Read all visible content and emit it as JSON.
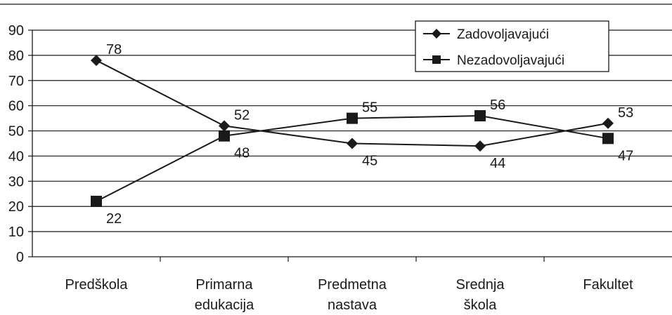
{
  "chart_data": {
    "type": "line",
    "categories": [
      [
        "Predškola"
      ],
      [
        "Primarna",
        "edukacija"
      ],
      [
        "Predmetna",
        "nastava"
      ],
      [
        "Srednja",
        "škola"
      ],
      [
        "Fakultet"
      ]
    ],
    "series": [
      {
        "name": "Zadovoljavajući",
        "marker": "diamond",
        "values": [
          78,
          52,
          45,
          44,
          53
        ]
      },
      {
        "name": "Nezadovoljavajući",
        "marker": "square",
        "values": [
          22,
          48,
          55,
          56,
          47
        ]
      }
    ],
    "data_labels": [
      [
        "78",
        "52",
        "45",
        "44",
        "53"
      ],
      [
        "22",
        "48",
        "55",
        "56",
        "47"
      ]
    ],
    "yticks": [
      "0",
      "10",
      "20",
      "30",
      "40",
      "50",
      "60",
      "70",
      "80",
      "90"
    ],
    "ylim": [
      0,
      90
    ],
    "grid": true,
    "legend": "top-right",
    "title": "",
    "xlabel": "",
    "ylabel": "",
    "colors": {
      "line": "#1a1a1a",
      "grid": "#1a1a1a"
    }
  }
}
